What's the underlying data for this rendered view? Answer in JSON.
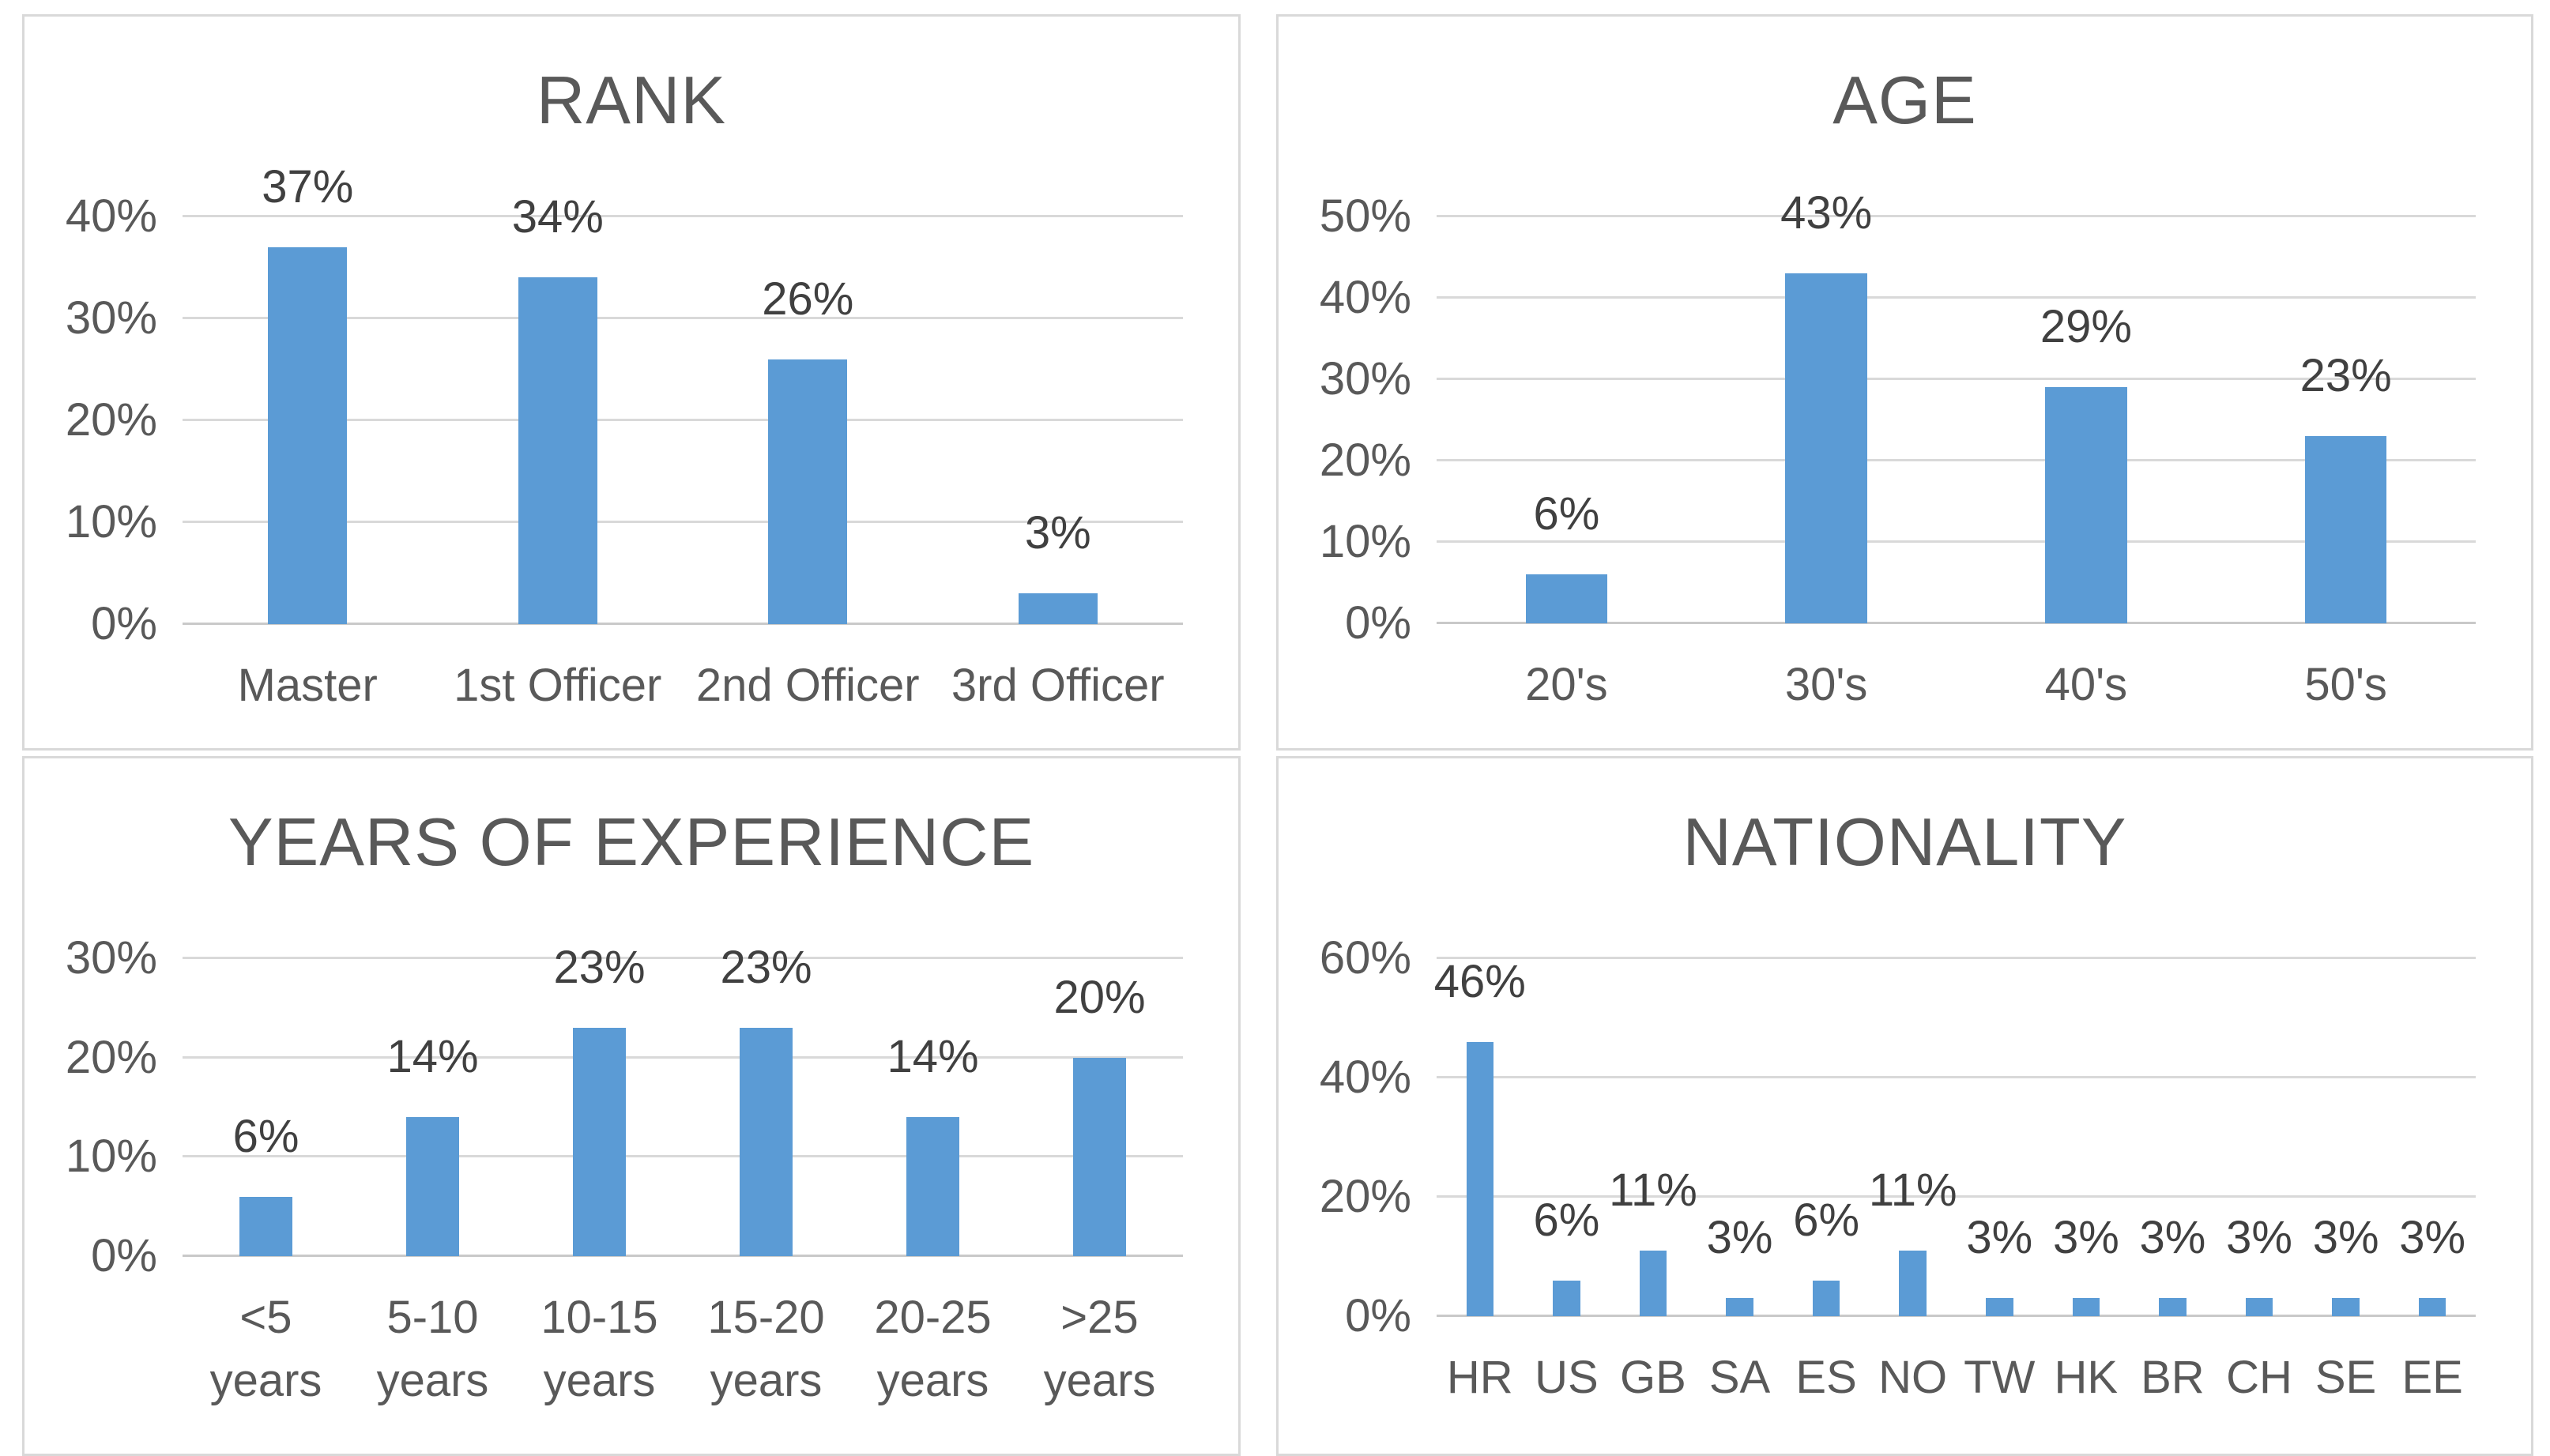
{
  "page": {
    "background": "#ffffff",
    "panel_border_color": "#d9d9d9"
  },
  "styles": {
    "bar_color": "#5B9BD5",
    "gridline_color": "#d9d9d9",
    "axis_line_color": "#c9c9c9",
    "title_color": "#595959",
    "axis_label_color": "#595959",
    "data_label_color": "#404040"
  },
  "chart_data": [
    {
      "type": "bar",
      "title": "RANK",
      "categories": [
        "Master",
        "1st Officer",
        "2nd Officer",
        "3rd Officer"
      ],
      "values": [
        37,
        34,
        26,
        3
      ],
      "data_labels": [
        "37%",
        "34%",
        "26%",
        "3%"
      ],
      "xlabel": "",
      "ylabel": "",
      "ylim": [
        0,
        40
      ],
      "ytick_step": 10,
      "ytick_labels": [
        "0%",
        "10%",
        "20%",
        "30%",
        "40%"
      ],
      "grid": true,
      "legend": "none",
      "bar_color": "#5B9BD5"
    },
    {
      "type": "bar",
      "title": "AGE",
      "categories": [
        "20's",
        "30's",
        "40's",
        "50's"
      ],
      "values": [
        6,
        43,
        29,
        23
      ],
      "data_labels": [
        "6%",
        "43%",
        "29%",
        "23%"
      ],
      "xlabel": "",
      "ylabel": "",
      "ylim": [
        0,
        50
      ],
      "ytick_step": 10,
      "ytick_labels": [
        "0%",
        "10%",
        "20%",
        "30%",
        "40%",
        "50%"
      ],
      "grid": true,
      "legend": "none",
      "bar_color": "#5B9BD5"
    },
    {
      "type": "bar",
      "title": "YEARS OF EXPERIENCE",
      "categories": [
        "<5\nyears",
        "5-10\nyears",
        "10-15\nyears",
        "15-20\nyears",
        "20-25\nyears",
        ">25\nyears"
      ],
      "values": [
        6,
        14,
        23,
        23,
        14,
        20
      ],
      "data_labels": [
        "6%",
        "14%",
        "23%",
        "23%",
        "14%",
        "20%"
      ],
      "xlabel": "",
      "ylabel": "",
      "ylim": [
        0,
        30
      ],
      "ytick_step": 10,
      "ytick_labels": [
        "0%",
        "10%",
        "20%",
        "30%"
      ],
      "grid": true,
      "legend": "none",
      "bar_color": "#5B9BD5"
    },
    {
      "type": "bar",
      "title": "NATIONALITY",
      "categories": [
        "HR",
        "US",
        "GB",
        "SA",
        "ES",
        "NO",
        "TW",
        "HK",
        "BR",
        "CH",
        "SE",
        "EE"
      ],
      "values": [
        46,
        6,
        11,
        3,
        6,
        11,
        3,
        3,
        3,
        3,
        3,
        3
      ],
      "data_labels": [
        "46%",
        "6%",
        "11%",
        "3%",
        "6%",
        "11%",
        "3%",
        "3%",
        "3%",
        "3%",
        "3%",
        "3%"
      ],
      "xlabel": "",
      "ylabel": "",
      "ylim": [
        0,
        60
      ],
      "ytick_step": 20,
      "ytick_labels": [
        "0%",
        "20%",
        "40%",
        "60%"
      ],
      "grid": true,
      "legend": "none",
      "bar_color": "#5B9BD5"
    }
  ]
}
